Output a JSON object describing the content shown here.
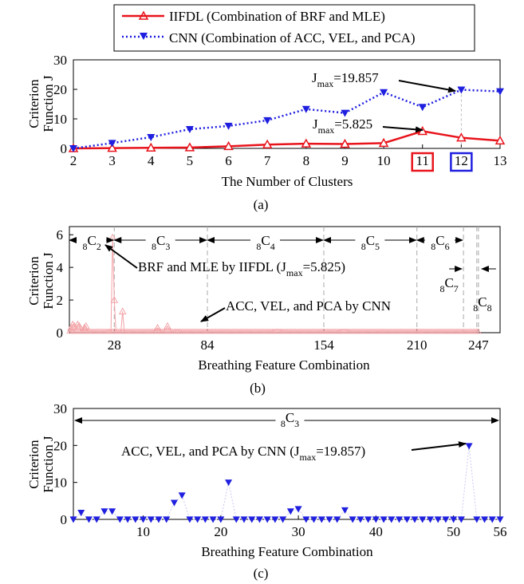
{
  "legend": {
    "items": [
      {
        "label": "IIFDL (Combination of BRF and MLE)",
        "color": "#e8141c",
        "marker": "triangle-up",
        "dash": "solid"
      },
      {
        "label": "CNN (Combination of ACC, VEL, and PCA)",
        "color": "#1f1fe0",
        "marker": "triangle-down",
        "dash": "dotted"
      }
    ]
  },
  "chart_data": [
    {
      "type": "line",
      "panel": "(a)",
      "xlabel": "The Number of Clusters",
      "ylabel": [
        "Criterion",
        "Function J"
      ],
      "xlim": [
        2,
        13
      ],
      "ylim": [
        0,
        30
      ],
      "xticks": [
        2,
        3,
        4,
        5,
        6,
        7,
        8,
        9,
        10,
        11,
        12,
        13
      ],
      "yticks": [
        0,
        10,
        20,
        30
      ],
      "x": [
        2,
        3,
        4,
        5,
        6,
        7,
        8,
        9,
        10,
        11,
        12,
        13
      ],
      "series": [
        {
          "name": "IIFDL (Combination of BRF and MLE)",
          "color": "#e8141c",
          "marker": "triangle-up",
          "values": [
            0,
            0.1,
            0.2,
            0.3,
            0.7,
            1.3,
            1.6,
            1.5,
            1.8,
            5.825,
            3.6,
            2.6
          ]
        },
        {
          "name": "CNN (Combination of ACC, VEL, and PCA)",
          "color": "#1f1fe0",
          "marker": "triangle-down",
          "values": [
            0,
            1.8,
            3.8,
            6.5,
            7.6,
            9.5,
            13.3,
            12.0,
            19.0,
            14.0,
            19.857,
            19.3
          ]
        }
      ],
      "highlighted_ticks": [
        {
          "value": 11,
          "color": "#e8141c"
        },
        {
          "value": 12,
          "color": "#1f1fe0"
        }
      ],
      "annotations": [
        {
          "prefix": "J",
          "sub": "max",
          "text": "=19.857",
          "target_x": 12,
          "target_y": 19.857
        },
        {
          "prefix": "J",
          "sub": "max",
          "text": "=5.825",
          "target_x": 11,
          "target_y": 5.825
        }
      ]
    },
    {
      "type": "line",
      "panel": "(b)",
      "xlabel": "Breathing Feature Combination",
      "ylabel": [
        "Criterion",
        "Function J"
      ],
      "xlim": [
        1,
        260
      ],
      "ylim": [
        0,
        6.5
      ],
      "xticks": [
        28,
        84,
        154,
        210,
        247
      ],
      "yticks": [
        0,
        2,
        4,
        6
      ],
      "series": [
        {
          "name": "BRF and MLE by IIFDL",
          "color": "#f3a3a7",
          "marker": "triangle-up",
          "x": [
            1,
            2,
            3,
            4,
            5,
            6,
            7,
            8,
            9,
            10,
            11,
            12,
            13,
            14,
            15,
            16,
            17,
            18,
            19,
            20,
            21,
            22,
            23,
            24,
            25,
            26,
            27,
            28,
            29,
            30,
            31,
            32,
            33,
            34,
            35,
            36,
            37,
            38,
            40,
            42,
            44,
            46,
            48,
            50,
            52,
            54,
            56,
            58,
            60,
            62,
            64,
            66,
            68,
            70,
            72,
            74,
            76,
            78,
            80,
            82,
            84,
            86,
            90,
            94,
            98,
            102,
            106,
            110,
            114,
            118,
            122,
            126,
            130,
            134,
            138,
            142,
            146,
            150,
            154,
            158,
            162,
            166,
            170,
            174,
            178,
            182,
            186,
            190,
            194,
            198,
            202,
            206,
            210,
            214,
            218,
            222,
            226,
            230,
            234,
            238,
            242,
            246,
            247
          ],
          "values": [
            0.1,
            0.3,
            0.5,
            0.4,
            0.2,
            0.5,
            0.4,
            0.1,
            0.1,
            0.3,
            0.4,
            0.1,
            0.1,
            0.1,
            0.1,
            0.1,
            0.1,
            0.1,
            0.1,
            0.1,
            0.1,
            0.1,
            0.1,
            0.1,
            0.2,
            0.1,
            5.825,
            2.0,
            0.1,
            0.1,
            0.1,
            0.1,
            1.3,
            0.1,
            0.1,
            0.1,
            0.1,
            0.1,
            0.1,
            0.1,
            0.1,
            0.1,
            0.1,
            0.1,
            0.1,
            0.3,
            0.1,
            0.1,
            0.4,
            0.1,
            0.1,
            0.2,
            0.1,
            0.1,
            0.1,
            0.1,
            0.1,
            0.1,
            0.1,
            0.1,
            0.1,
            0.1,
            0.1,
            0.1,
            0.1,
            0.1,
            0.1,
            0.1,
            0.1,
            0.1,
            0.1,
            0.2,
            0.1,
            0.1,
            0.1,
            0.1,
            0.1,
            0.1,
            0.1,
            0.1,
            0.1,
            0.2,
            0.1,
            0.1,
            0.1,
            0.1,
            0.1,
            0.1,
            0.1,
            0.1,
            0.1,
            0.1,
            0.1,
            0.1,
            0.1,
            0.1,
            0.1,
            0.1,
            0.1,
            0.1,
            0.1,
            0.1,
            0.1
          ]
        }
      ],
      "group_boundaries": [
        28,
        84,
        154,
        210,
        238,
        246,
        247
      ],
      "groups": [
        {
          "label": "C",
          "pre": "8",
          "sub": "2",
          "from": 1,
          "to": 28
        },
        {
          "label": "C",
          "pre": "8",
          "sub": "3",
          "from": 28,
          "to": 84
        },
        {
          "label": "C",
          "pre": "8",
          "sub": "4",
          "from": 84,
          "to": 154
        },
        {
          "label": "C",
          "pre": "8",
          "sub": "5",
          "from": 154,
          "to": 210
        },
        {
          "label": "C",
          "pre": "8",
          "sub": "6",
          "from": 210,
          "to": 238
        },
        {
          "label": "C",
          "pre": "8",
          "sub": "7",
          "from": 238,
          "to": 246
        },
        {
          "label": "C",
          "pre": "8",
          "sub": "8",
          "from": 246,
          "to": 247
        }
      ],
      "annotations": [
        {
          "text": "BRF and MLE by IIFDL (J",
          "sub": "max",
          "text2": "=5.825)",
          "target_x": 27,
          "target_y": 5.825
        },
        {
          "text": "ACC, VEL, and PCA by CNN",
          "target_x": 80,
          "target_y": 0.2
        }
      ]
    },
    {
      "type": "scatter",
      "panel": "(c)",
      "xlabel": "Breathing Feature Combination",
      "ylabel": [
        "Criterion",
        "Function J"
      ],
      "xlim": [
        1,
        56
      ],
      "ylim": [
        0,
        30
      ],
      "xticks": [
        10,
        20,
        30,
        40,
        50,
        56
      ],
      "yticks": [
        0,
        10,
        20,
        30
      ],
      "series": [
        {
          "name": "ACC, VEL, and PCA by CNN",
          "color": "#1f1fe0",
          "marker": "triangle-down",
          "x": [
            1,
            2,
            3,
            4,
            5,
            6,
            7,
            8,
            9,
            10,
            11,
            12,
            13,
            14,
            15,
            16,
            17,
            18,
            19,
            20,
            21,
            22,
            23,
            24,
            25,
            26,
            27,
            28,
            29,
            30,
            31,
            32,
            33,
            34,
            35,
            36,
            37,
            38,
            39,
            40,
            41,
            42,
            43,
            44,
            45,
            46,
            47,
            48,
            49,
            50,
            51,
            52,
            53,
            54,
            55,
            56
          ],
          "values": [
            0,
            1.8,
            0,
            0,
            2.2,
            2.2,
            0,
            0,
            0,
            0,
            0,
            0,
            0,
            4.5,
            6.5,
            0,
            0,
            0,
            0,
            0,
            10.0,
            0,
            0,
            0,
            0,
            0,
            0,
            0,
            2.2,
            2.8,
            0,
            0,
            0,
            0,
            0,
            2.5,
            0,
            0,
            0,
            0,
            0,
            0,
            0,
            0,
            0,
            0,
            0,
            0,
            0,
            0,
            0,
            19.857,
            0,
            0,
            0,
            0
          ]
        }
      ],
      "groups": [
        {
          "label": "C",
          "pre": "8",
          "sub": "3",
          "from": 1,
          "to": 56
        }
      ],
      "annotations": [
        {
          "text": "ACC, VEL, and PCA by CNN (J",
          "sub": "max",
          "text2": "=19.857)",
          "target_x": 52,
          "target_y": 19.857
        }
      ]
    }
  ]
}
